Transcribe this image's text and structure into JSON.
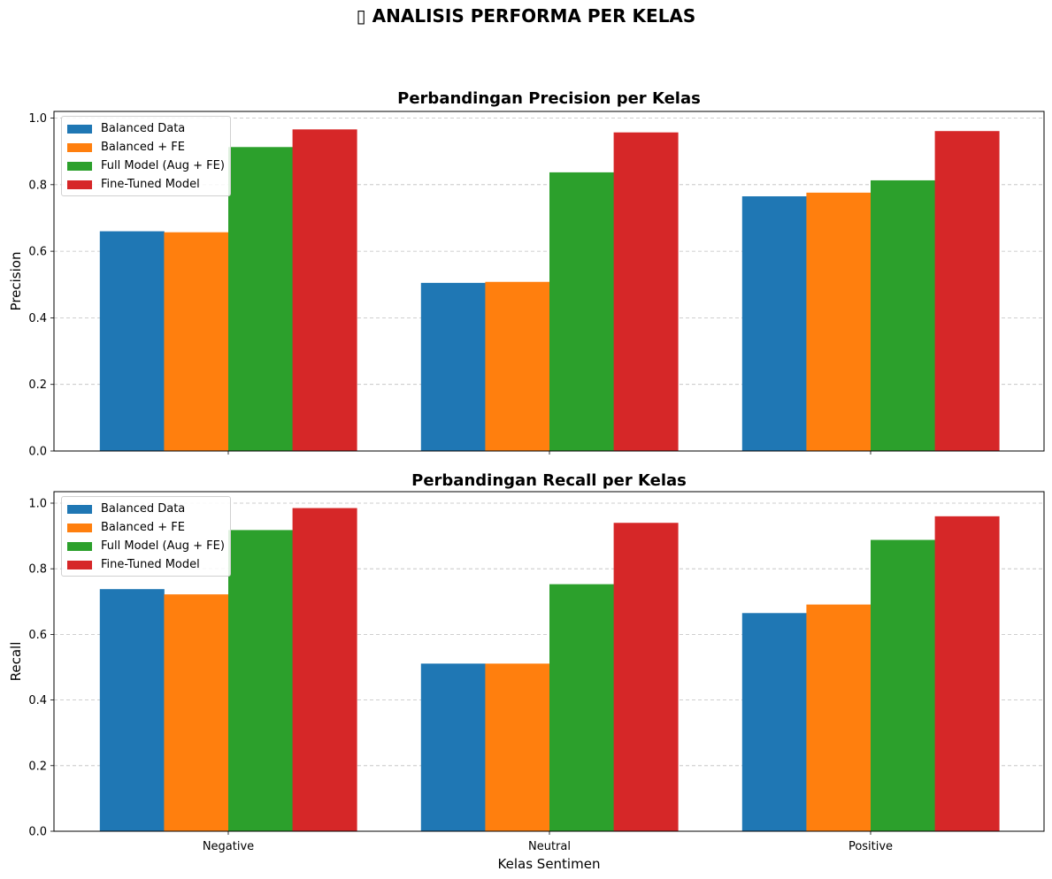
{
  "figure_title": "▯ ANALISIS PERFORMA PER KELAS",
  "chart_data": [
    {
      "type": "bar",
      "title": "Perbandingan Precision per Kelas",
      "xlabel": "",
      "ylabel": "Precision",
      "categories": [
        "Negative",
        "Neutral",
        "Positive"
      ],
      "ylim": [
        0,
        1.02
      ],
      "yticks": [
        "0.0",
        "0.2",
        "0.4",
        "0.6",
        "0.8",
        "1.0"
      ],
      "show_x_tick_labels": false,
      "grid": "y-dashed",
      "legend_position": "upper-left",
      "series": [
        {
          "name": "Balanced Data",
          "color": "#1f77b4",
          "values": [
            0.66,
            0.505,
            0.765
          ]
        },
        {
          "name": "Balanced + FE",
          "color": "#ff7f0e",
          "values": [
            0.657,
            0.508,
            0.776
          ]
        },
        {
          "name": "Full Model (Aug + FE)",
          "color": "#2ca02c",
          "values": [
            0.913,
            0.837,
            0.813
          ]
        },
        {
          "name": "Fine-Tuned Model",
          "color": "#d62728",
          "values": [
            0.966,
            0.957,
            0.961
          ]
        }
      ]
    },
    {
      "type": "bar",
      "title": "Perbandingan Recall per Kelas",
      "xlabel": "Kelas Sentimen",
      "ylabel": "Recall",
      "categories": [
        "Negative",
        "Neutral",
        "Positive"
      ],
      "ylim": [
        0,
        1.035
      ],
      "yticks": [
        "0.0",
        "0.2",
        "0.4",
        "0.6",
        "0.8",
        "1.0"
      ],
      "show_x_tick_labels": true,
      "grid": "y-dashed",
      "legend_position": "upper-left",
      "series": [
        {
          "name": "Balanced Data",
          "color": "#1f77b4",
          "values": [
            0.738,
            0.511,
            0.665
          ]
        },
        {
          "name": "Balanced + FE",
          "color": "#ff7f0e",
          "values": [
            0.722,
            0.511,
            0.691
          ]
        },
        {
          "name": "Full Model (Aug + FE)",
          "color": "#2ca02c",
          "values": [
            0.918,
            0.753,
            0.888
          ]
        },
        {
          "name": "Fine-Tuned Model",
          "color": "#d62728",
          "values": [
            0.985,
            0.94,
            0.96
          ]
        }
      ]
    }
  ]
}
